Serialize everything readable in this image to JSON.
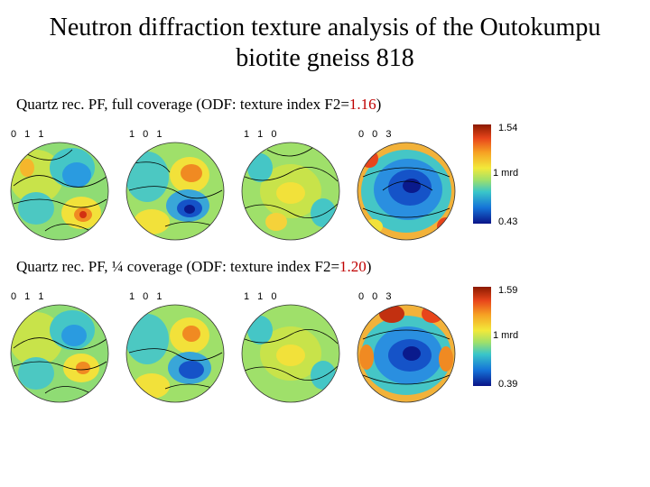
{
  "title_line1": "Neutron diffraction texture analysis of the Outokumpu",
  "title_line2": "biotite gneiss 818",
  "panels": [
    {
      "caption_pre": "Quartz rec. PF, full coverage (ODF: texture index F2=",
      "caption_value": "1.16",
      "caption_post": ")",
      "labels": [
        "0 1 1",
        "1 0 1",
        "1 1 0",
        "0 0 3"
      ],
      "colorbar": {
        "max": "1.54",
        "mid": "1 mrd",
        "min": "0.43"
      }
    },
    {
      "caption_pre": "Quartz rec. PF, ¼ coverage (ODF: texture index F2=",
      "caption_value": "1.20",
      "caption_post": ")",
      "labels": [
        "0 1 1",
        "1 0 1",
        "1 1 0",
        "0 0 3"
      ],
      "colorbar": {
        "max": "1.59",
        "mid": "1 mrd",
        "min": "0.39"
      }
    }
  ],
  "colors": {
    "highlight": "#c00000"
  }
}
